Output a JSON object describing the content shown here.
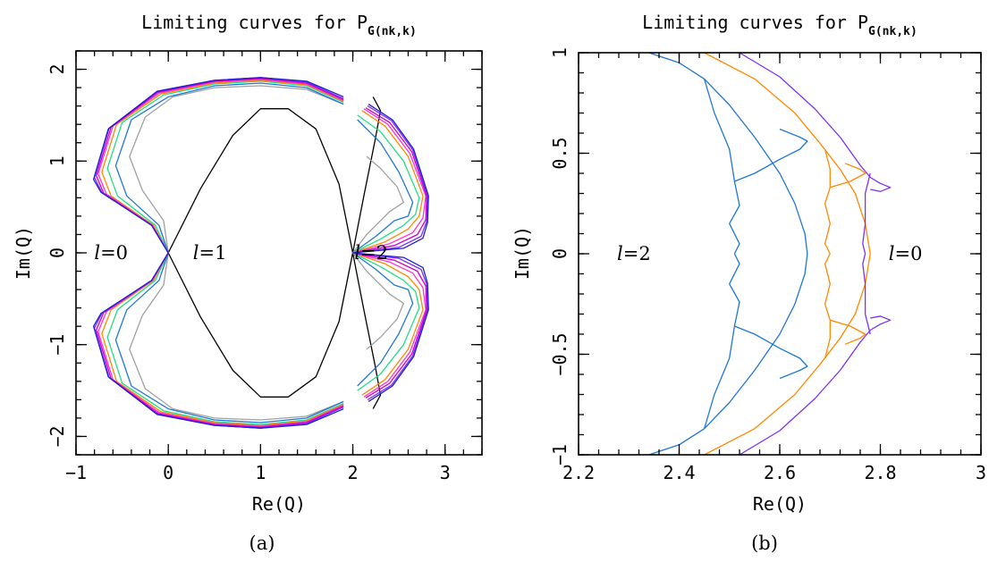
{
  "chart_data": [
    {
      "type": "line",
      "title": "Limiting curves for P",
      "title_subscript": "G(nk,k)",
      "xlabel": "Re(Q)",
      "ylabel": "Im(Q)",
      "xlim": [
        -1,
        3.4
      ],
      "ylim": [
        -2.2,
        2.2
      ],
      "xticks": [
        -1,
        0,
        1,
        2,
        3
      ],
      "yticks": [
        -2,
        -1,
        0,
        1,
        2
      ],
      "caption": "(a)",
      "grid": false,
      "annotations": [
        {
          "prefix": "l",
          "text": "=0",
          "x": -0.62,
          "y": 0
        },
        {
          "prefix": "l",
          "text": "=1",
          "x": 0.45,
          "y": 0
        },
        {
          "prefix": "l",
          "text": "=2",
          "x": 2.2,
          "y": 0
        }
      ],
      "series": [
        {
          "color": "#000000",
          "cardioid": null,
          "kissing": [
            [
              0,
              0
            ],
            [
              0.35,
              0.7
            ],
            [
              0.7,
              1.28
            ],
            [
              1.0,
              1.57
            ],
            [
              1.3,
              1.57
            ],
            [
              1.6,
              1.35
            ],
            [
              1.85,
              0.75
            ],
            [
              2.0,
              0
            ]
          ],
          "right": [
            [
              2.0,
              0
            ],
            [
              2.12,
              0.62
            ],
            [
              2.24,
              1.22
            ],
            [
              2.3,
              1.55
            ],
            [
              2.22,
              1.7
            ]
          ]
        },
        {
          "color": "#a0a0a0",
          "cardioid": [
            [
              0,
              0
            ],
            [
              -0.05,
              0.35
            ],
            [
              -0.28,
              0.68
            ],
            [
              -0.42,
              1.05
            ],
            [
              -0.25,
              1.48
            ],
            [
              0.05,
              1.7
            ],
            [
              0.5,
              1.8
            ],
            [
              1.0,
              1.82
            ],
            [
              1.5,
              1.78
            ],
            [
              1.9,
              1.62
            ]
          ],
          "right": [
            [
              2.0,
              0
            ],
            [
              2.15,
              0.2
            ],
            [
              2.4,
              0.45
            ],
            [
              2.55,
              0.55
            ],
            [
              2.48,
              0.72
            ],
            [
              2.3,
              0.92
            ],
            [
              2.15,
              1.05
            ]
          ]
        },
        {
          "color": "#1f77d4",
          "cardioid": [
            [
              0,
              0
            ],
            [
              -0.1,
              0.3
            ],
            [
              -0.45,
              0.62
            ],
            [
              -0.57,
              0.95
            ],
            [
              -0.4,
              1.45
            ],
            [
              0.0,
              1.7
            ],
            [
              0.5,
              1.82
            ],
            [
              1.0,
              1.85
            ],
            [
              1.5,
              1.8
            ],
            [
              1.9,
              1.62
            ]
          ],
          "right": [
            [
              2.0,
              0
            ],
            [
              2.25,
              0.18
            ],
            [
              2.45,
              0.35
            ],
            [
              2.6,
              0.4
            ],
            [
              2.65,
              0.55
            ],
            [
              2.5,
              0.88
            ],
            [
              2.3,
              1.2
            ],
            [
              2.05,
              1.45
            ]
          ]
        },
        {
          "color": "#22dd88",
          "cardioid": [
            [
              0,
              0
            ],
            [
              -0.14,
              0.3
            ],
            [
              -0.55,
              0.62
            ],
            [
              -0.66,
              0.92
            ],
            [
              -0.5,
              1.42
            ],
            [
              -0.05,
              1.72
            ],
            [
              0.5,
              1.84
            ],
            [
              1.0,
              1.87
            ],
            [
              1.5,
              1.82
            ],
            [
              1.9,
              1.64
            ]
          ],
          "right": [
            [
              2.0,
              0
            ],
            [
              2.3,
              0.15
            ],
            [
              2.55,
              0.3
            ],
            [
              2.68,
              0.42
            ],
            [
              2.72,
              0.6
            ],
            [
              2.55,
              1.0
            ],
            [
              2.3,
              1.32
            ],
            [
              2.05,
              1.5
            ]
          ]
        },
        {
          "color": "#ff8800",
          "cardioid": [
            [
              0,
              0
            ],
            [
              -0.16,
              0.3
            ],
            [
              -0.62,
              0.62
            ],
            [
              -0.72,
              0.88
            ],
            [
              -0.56,
              1.4
            ],
            [
              -0.08,
              1.73
            ],
            [
              0.5,
              1.85
            ],
            [
              1.0,
              1.88
            ],
            [
              1.5,
              1.83
            ],
            [
              1.9,
              1.65
            ]
          ],
          "right": [
            [
              2.0,
              0
            ],
            [
              2.35,
              0.12
            ],
            [
              2.6,
              0.26
            ],
            [
              2.72,
              0.4
            ],
            [
              2.76,
              0.62
            ],
            [
              2.6,
              1.05
            ],
            [
              2.35,
              1.38
            ],
            [
              2.1,
              1.55
            ]
          ]
        },
        {
          "color": "#ff33cc",
          "cardioid": [
            [
              0,
              0
            ],
            [
              -0.17,
              0.3
            ],
            [
              -0.67,
              0.64
            ],
            [
              -0.76,
              0.86
            ],
            [
              -0.6,
              1.38
            ],
            [
              -0.1,
              1.74
            ],
            [
              0.5,
              1.86
            ],
            [
              1.0,
              1.89
            ],
            [
              1.5,
              1.84
            ],
            [
              1.9,
              1.66
            ]
          ],
          "right": [
            [
              2.0,
              0
            ],
            [
              2.4,
              0.1
            ],
            [
              2.65,
              0.22
            ],
            [
              2.76,
              0.38
            ],
            [
              2.79,
              0.62
            ],
            [
              2.62,
              1.08
            ],
            [
              2.38,
              1.4
            ],
            [
              2.12,
              1.57
            ]
          ]
        },
        {
          "color": "#cc00cc",
          "cardioid": [
            [
              0,
              0
            ],
            [
              -0.18,
              0.3
            ],
            [
              -0.7,
              0.65
            ],
            [
              -0.78,
              0.84
            ],
            [
              -0.62,
              1.37
            ],
            [
              -0.11,
              1.75
            ],
            [
              0.5,
              1.87
            ],
            [
              1.0,
              1.9
            ],
            [
              1.5,
              1.85
            ],
            [
              1.9,
              1.67
            ]
          ],
          "right": [
            [
              2.0,
              0
            ],
            [
              2.45,
              0.08
            ],
            [
              2.7,
              0.2
            ],
            [
              2.79,
              0.36
            ],
            [
              2.8,
              0.62
            ],
            [
              2.64,
              1.1
            ],
            [
              2.4,
              1.42
            ],
            [
              2.14,
              1.58
            ]
          ]
        },
        {
          "color": "#7b2ff7",
          "cardioid": [
            [
              0,
              0
            ],
            [
              -0.18,
              0.3
            ],
            [
              -0.72,
              0.66
            ],
            [
              -0.8,
              0.82
            ],
            [
              -0.64,
              1.36
            ],
            [
              -0.12,
              1.76
            ],
            [
              0.5,
              1.88
            ],
            [
              1.0,
              1.91
            ],
            [
              1.5,
              1.86
            ],
            [
              1.9,
              1.68
            ]
          ],
          "right": [
            [
              2.0,
              0
            ],
            [
              2.5,
              0.06
            ],
            [
              2.74,
              0.18
            ],
            [
              2.8,
              0.34
            ],
            [
              2.81,
              0.62
            ],
            [
              2.65,
              1.12
            ],
            [
              2.42,
              1.44
            ],
            [
              2.16,
              1.6
            ]
          ]
        },
        {
          "color": "#2020cc",
          "cardioid": [
            [
              0,
              0
            ],
            [
              -0.18,
              0.3
            ],
            [
              -0.73,
              0.66
            ],
            [
              -0.81,
              0.8
            ],
            [
              -0.65,
              1.35
            ],
            [
              -0.12,
              1.76
            ],
            [
              0.5,
              1.88
            ],
            [
              1.0,
              1.91
            ],
            [
              1.5,
              1.87
            ],
            [
              1.9,
              1.7
            ]
          ],
          "right": [
            [
              2.0,
              0
            ],
            [
              2.55,
              0.05
            ],
            [
              2.76,
              0.16
            ],
            [
              2.81,
              0.33
            ],
            [
              2.82,
              0.62
            ],
            [
              2.66,
              1.13
            ],
            [
              2.43,
              1.45
            ],
            [
              2.17,
              1.62
            ]
          ]
        }
      ]
    },
    {
      "type": "line",
      "title": "Limiting curves for P",
      "title_subscript": "G(nk,k)",
      "xlabel": "Re(Q)",
      "ylabel": "Im(Q)",
      "xlim": [
        2.2,
        3.0
      ],
      "ylim": [
        -1,
        1
      ],
      "xticks": [
        2.2,
        2.4,
        2.6,
        2.8,
        3
      ],
      "yticks": [
        -1,
        -0.5,
        0,
        0.5,
        1
      ],
      "caption": "(b)",
      "grid": false,
      "annotations": [
        {
          "prefix": "l",
          "text": "=2",
          "x": 2.31,
          "y": 0
        },
        {
          "prefix": "l",
          "text": "=0",
          "x": 2.85,
          "y": 0
        }
      ],
      "series": [
        {
          "color": "#1f77d4",
          "parts": [
            [
              [
                2.34,
                1.0
              ],
              [
                2.4,
                0.95
              ],
              [
                2.45,
                0.87
              ],
              [
                2.5,
                0.74
              ],
              [
                2.55,
                0.58
              ],
              [
                2.6,
                0.4
              ],
              [
                2.63,
                0.25
              ],
              [
                2.65,
                0.1
              ],
              [
                2.655,
                0.0
              ]
            ],
            [
              [
                2.45,
                0.87
              ],
              [
                2.47,
                0.7
              ],
              [
                2.5,
                0.52
              ],
              [
                2.51,
                0.36
              ],
              [
                2.52,
                0.24
              ],
              [
                2.5,
                0.15
              ],
              [
                2.52,
                0.05
              ],
              [
                2.51,
                0.0
              ]
            ],
            [
              [
                2.51,
                0.36
              ],
              [
                2.55,
                0.4
              ],
              [
                2.6,
                0.47
              ],
              [
                2.64,
                0.52
              ],
              [
                2.655,
                0.56
              ],
              [
                2.64,
                0.58
              ],
              [
                2.6,
                0.62
              ]
            ]
          ]
        },
        {
          "color": "#ff8800",
          "parts": [
            [
              [
                2.45,
                1.0
              ],
              [
                2.55,
                0.87
              ],
              [
                2.63,
                0.7
              ],
              [
                2.68,
                0.55
              ],
              [
                2.72,
                0.42
              ],
              [
                2.75,
                0.3
              ],
              [
                2.77,
                0.15
              ],
              [
                2.78,
                0.0
              ]
            ],
            [
              [
                2.69,
                0.52
              ],
              [
                2.7,
                0.42
              ],
              [
                2.7,
                0.33
              ],
              [
                2.69,
                0.25
              ],
              [
                2.7,
                0.15
              ],
              [
                2.69,
                0.05
              ],
              [
                2.7,
                0.0
              ]
            ],
            [
              [
                2.7,
                0.33
              ],
              [
                2.74,
                0.36
              ],
              [
                2.77,
                0.4
              ],
              [
                2.76,
                0.42
              ],
              [
                2.73,
                0.45
              ]
            ]
          ]
        },
        {
          "color": "#7b2ff7",
          "parts": [
            [
              [
                2.52,
                1.0
              ],
              [
                2.6,
                0.88
              ],
              [
                2.67,
                0.72
              ],
              [
                2.72,
                0.58
              ],
              [
                2.76,
                0.44
              ],
              [
                2.78,
                0.38
              ],
              [
                2.8,
                0.35
              ],
              [
                2.82,
                0.33
              ],
              [
                2.8,
                0.31
              ],
              [
                2.78,
                0.32
              ]
            ],
            [
              [
                2.78,
                0.4
              ],
              [
                2.77,
                0.3
              ],
              [
                2.77,
                0.15
              ],
              [
                2.765,
                0.05
              ],
              [
                2.77,
                0.0
              ]
            ]
          ]
        }
      ]
    }
  ]
}
